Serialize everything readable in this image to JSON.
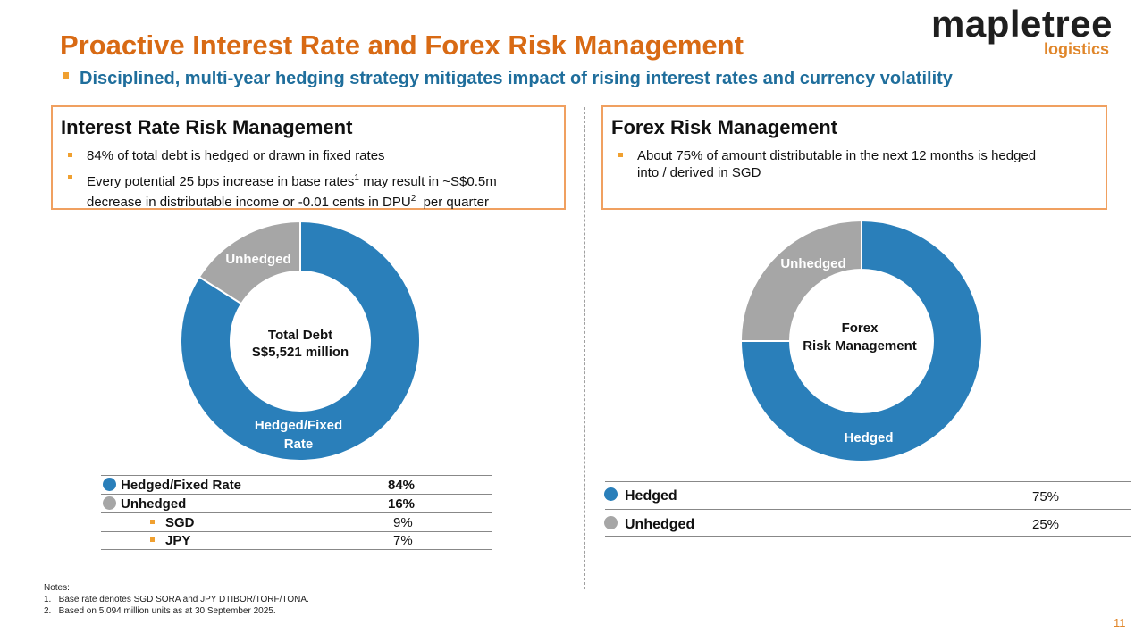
{
  "slide": {
    "title": "Proactive Interest Rate and Forex Risk Management",
    "subtitle": "Disciplined, multi-year hedging strategy mitigates impact of rising interest rates and currency volatility",
    "page_number": "11"
  },
  "logo": {
    "main": "mapletree",
    "sub": "logistics"
  },
  "interest_box": {
    "heading": "Interest Rate Risk Management",
    "bullet1": "84% of total debt is hedged or drawn in fixed rates",
    "bullet2_a": "Every potential 25 bps increase in base rates",
    "bullet2_sup1": "1",
    "bullet2_b": " may result in ~S$0.5m",
    "bullet2_c": "decrease in distributable income or -0.01 cents in DPU",
    "bullet2_sup2": "2",
    "bullet2_d": "  per quarter"
  },
  "forex_box": {
    "heading": "Forex Risk Management",
    "bullet1_a": "About 75% of amount distributable in the next 12 months is hedged",
    "bullet1_b": "into / derived in SGD"
  },
  "colors": {
    "hedged": "#2a7fba",
    "unhedged": "#a6a6a6",
    "accent": "#f0a030",
    "title": "#d86a14"
  },
  "chart_data": [
    {
      "type": "pie",
      "donut": true,
      "title": "Total Debt S$5,521 million",
      "center_line1": "Total Debt",
      "center_line2": "S$5,521 million",
      "categories": [
        "Hedged/Fixed Rate",
        "Unhedged"
      ],
      "values": [
        84,
        16
      ],
      "slice_labels": [
        "Hedged/Fixed Rate",
        "Unhedged"
      ],
      "slice_label_hedged_line1": "Hedged/Fixed",
      "slice_label_hedged_line2": "Rate",
      "slice_label_unhedged": "Unhedged",
      "unit": "%"
    },
    {
      "type": "pie",
      "donut": true,
      "title": "Forex Risk Management",
      "center_line1": "Forex",
      "center_line2": "Risk Management",
      "categories": [
        "Hedged",
        "Unhedged"
      ],
      "values": [
        75,
        25
      ],
      "slice_label_hedged": "Hedged",
      "slice_label_unhedged": "Unhedged",
      "unit": "%"
    }
  ],
  "interest_table": {
    "rows": [
      {
        "label": "Hedged/Fixed Rate",
        "value": "84%"
      },
      {
        "label": "Unhedged",
        "value": "16%"
      },
      {
        "label": "SGD",
        "value": "9%"
      },
      {
        "label": "JPY",
        "value": "7%"
      }
    ]
  },
  "forex_table": {
    "rows": [
      {
        "label": "Hedged",
        "value": "75%"
      },
      {
        "label": "Unhedged",
        "value": "25%"
      }
    ]
  },
  "notes": {
    "header": "Notes:",
    "n1": "1.   Base rate denotes SGD SORA and JPY DTIBOR/TORF/TONA.",
    "n2": "2.   Based on 5,094 million units as at 30 September 2025."
  }
}
